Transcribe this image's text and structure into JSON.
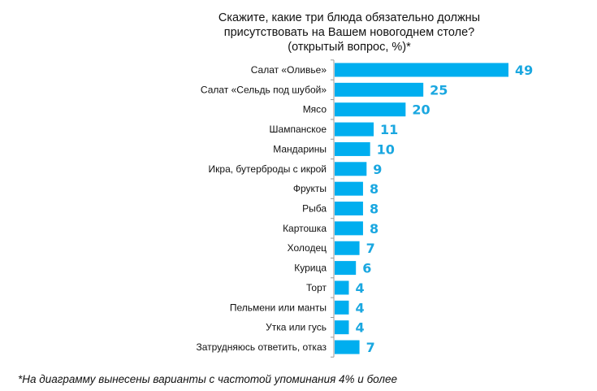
{
  "chart_data": {
    "type": "bar",
    "orientation": "horizontal",
    "title": "Скажите, какие три блюда обязательно должны присутствовать на Вашем новогоднем столе? (открытый вопрос, %)*",
    "title_lines": [
      "Скажите, какие три блюда обязательно должны",
      "присутствовать на Вашем новогоднем столе?",
      "(открытый вопрос, %)*"
    ],
    "categories": [
      "Салат «Оливье»",
      "Салат «Сельдь под шубой»",
      "Мясо",
      "Шампанское",
      "Мандарины",
      "Икра, бутерброды с икрой",
      "Фрукты",
      "Рыба",
      "Картошка",
      "Холодец",
      "Курица",
      "Торт",
      "Пельмени или манты",
      "Утка или гусь",
      "Затрудняюсь ответить, отказ"
    ],
    "values": [
      49,
      25,
      20,
      11,
      10,
      9,
      8,
      8,
      8,
      7,
      6,
      4,
      4,
      4,
      7
    ],
    "xlim": [
      0,
      49
    ],
    "grid": false,
    "bar_color": "#00aeef",
    "label_color": "#1aa7e0",
    "footnote": "*На диаграмму вынесены варианты с частотой упоминания 4% и более"
  }
}
